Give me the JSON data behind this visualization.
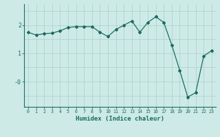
{
  "xlabel": "Humidex (Indice chaleur)",
  "ylabel": "",
  "background_color": "#cdeae6",
  "grid_color": "#aed4cf",
  "line_color": "#1a6b60",
  "marker_color": "#1a6b60",
  "x": [
    0,
    1,
    2,
    3,
    4,
    5,
    6,
    7,
    8,
    9,
    10,
    11,
    12,
    13,
    14,
    15,
    16,
    17,
    18,
    19,
    20,
    21,
    22,
    23
  ],
  "y": [
    1.75,
    1.65,
    1.7,
    1.72,
    1.8,
    1.92,
    1.95,
    1.95,
    1.95,
    1.75,
    1.6,
    1.85,
    2.0,
    2.15,
    1.75,
    2.1,
    2.3,
    2.1,
    1.3,
    0.4,
    -0.55,
    -0.4,
    0.9,
    1.1
  ],
  "ylim": [
    -0.9,
    2.75
  ],
  "xlim": [
    -0.5,
    23.5
  ],
  "xticks": [
    0,
    1,
    2,
    3,
    4,
    5,
    6,
    7,
    8,
    9,
    10,
    11,
    12,
    13,
    14,
    15,
    16,
    17,
    18,
    19,
    20,
    21,
    22,
    23
  ],
  "yticks": [
    0.0,
    1.0,
    2.0
  ],
  "ytick_labels": [
    "-0",
    "1",
    "2"
  ],
  "hgrid_vals": [
    -0.5,
    0.0,
    0.5,
    1.0,
    1.5,
    2.0,
    2.5
  ],
  "xlabel_fontsize": 6.5,
  "ytick_fontsize": 6.0,
  "xtick_fontsize": 4.8
}
